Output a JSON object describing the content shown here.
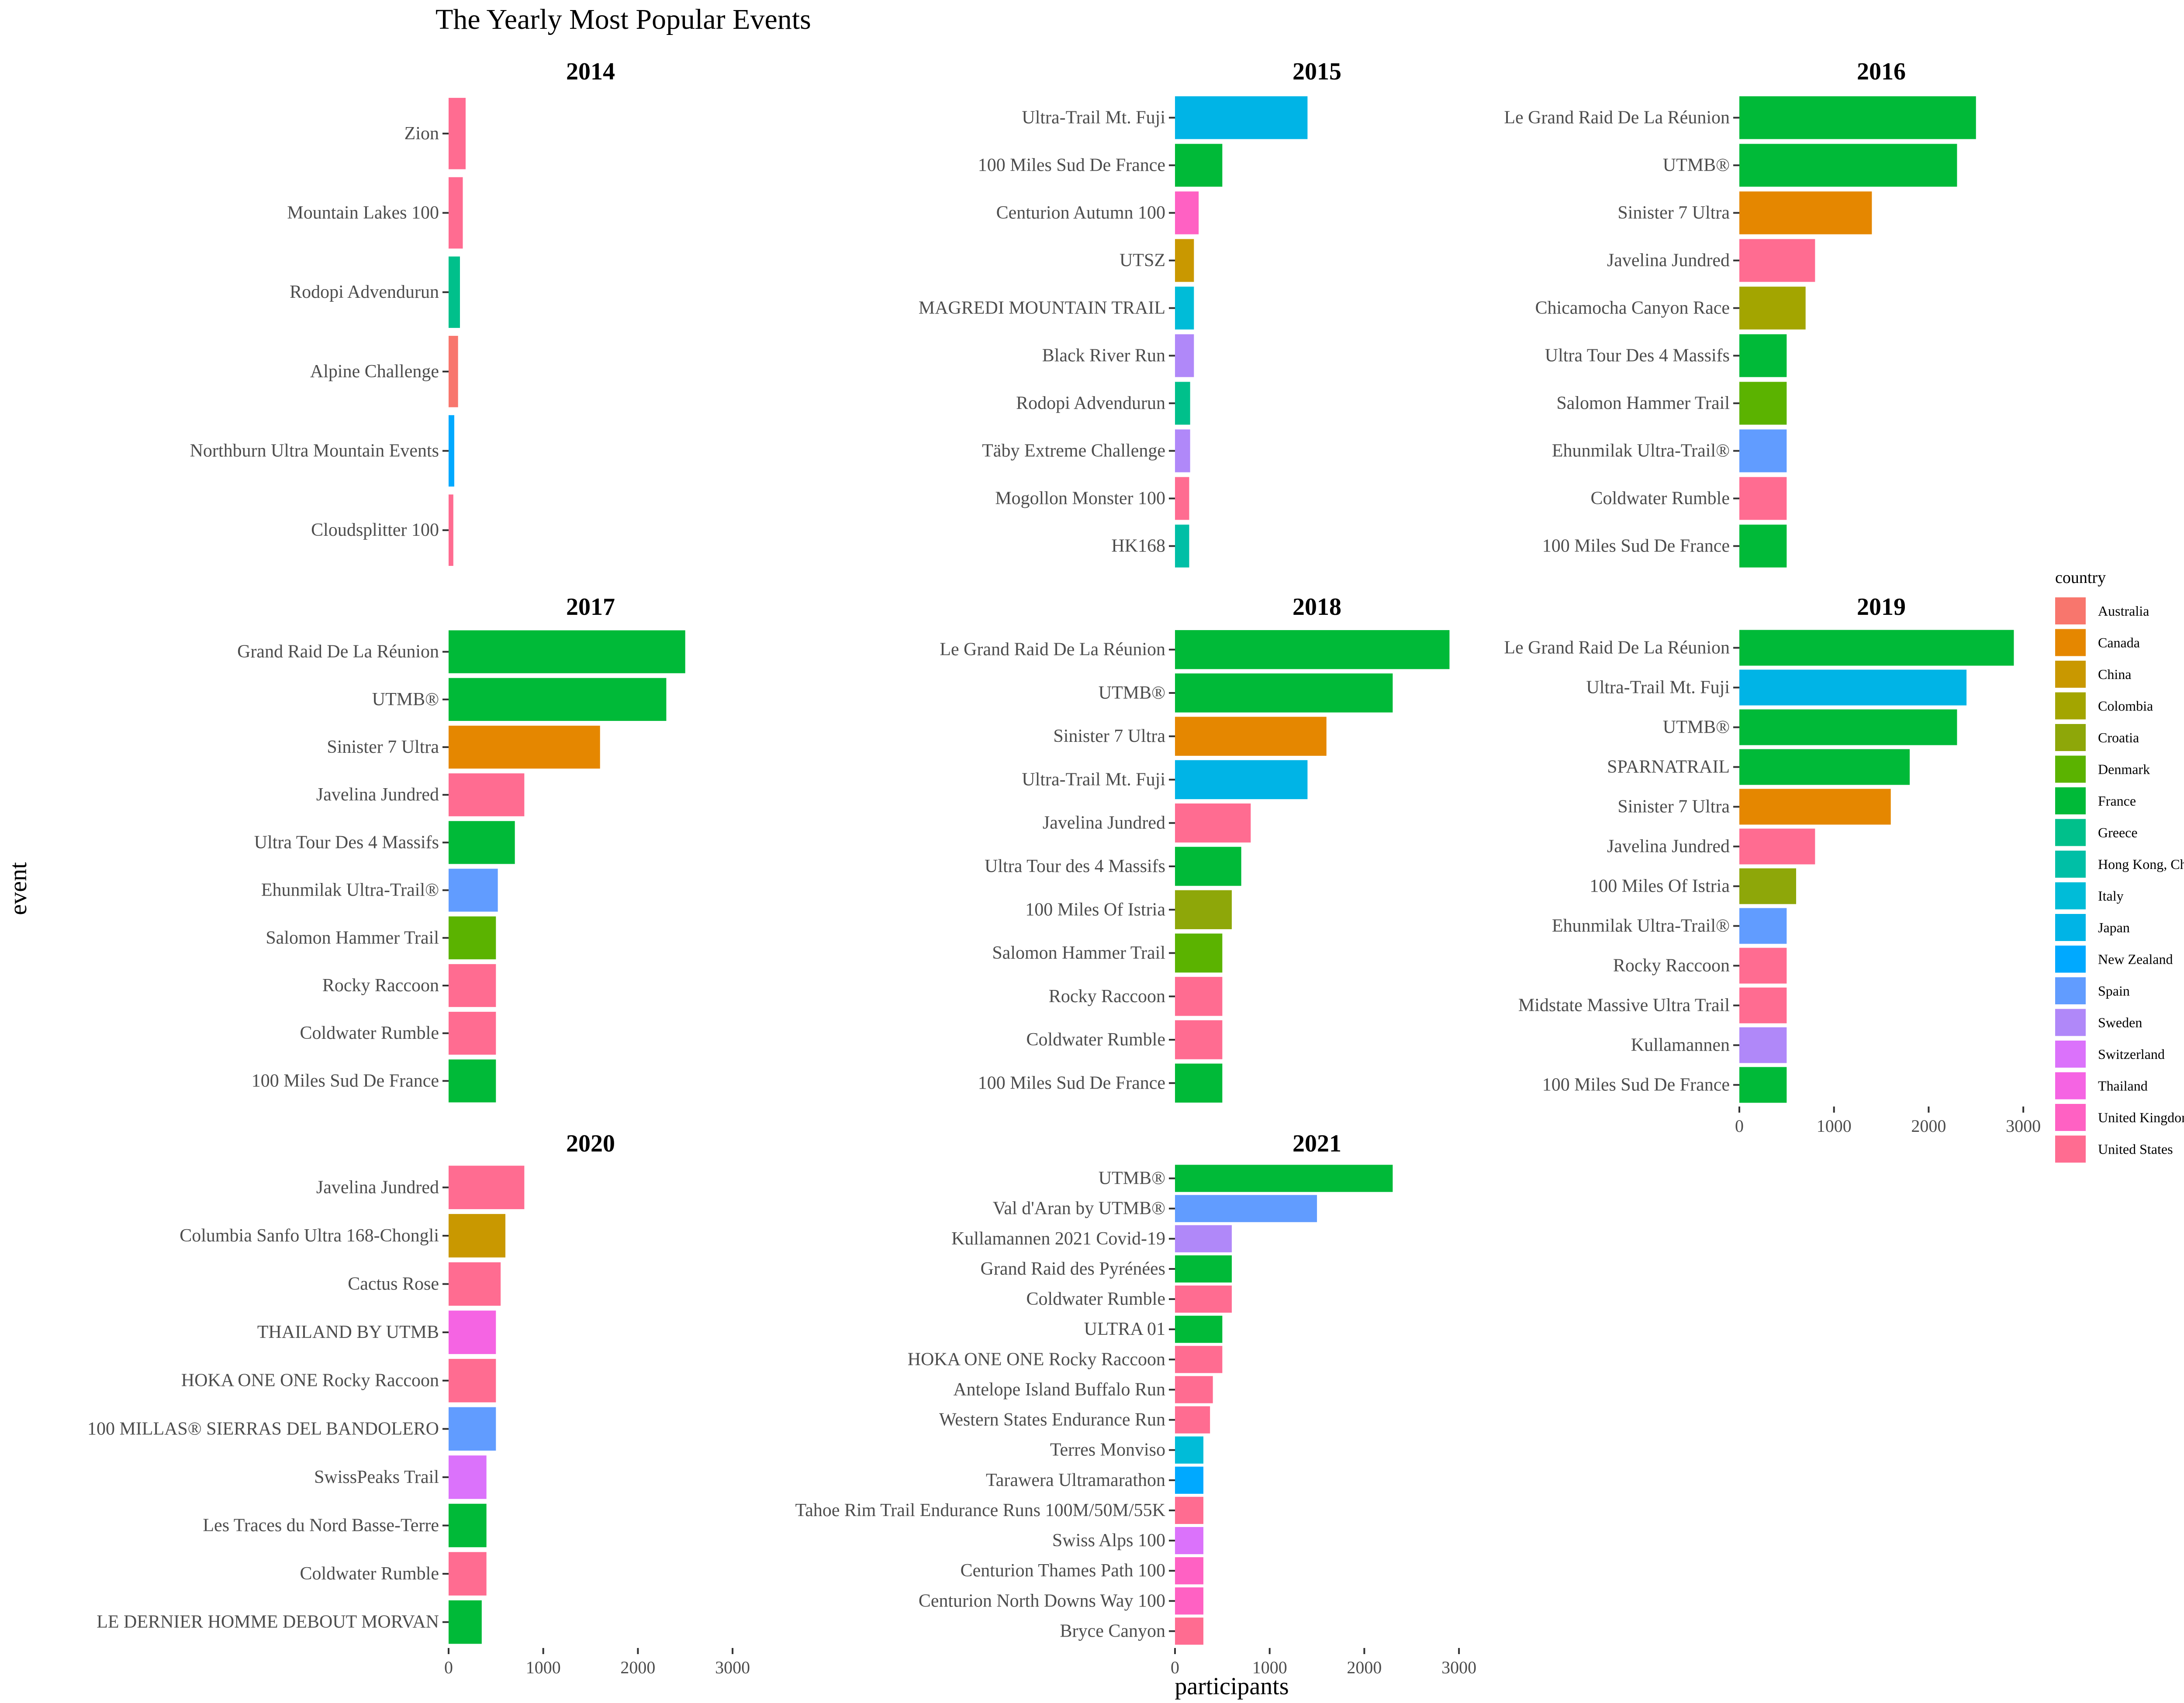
{
  "chart_data": {
    "type": "bar",
    "orientation": "horizontal",
    "title": "The Yearly Most Popular Events",
    "xlabel": "participants",
    "ylabel": "event",
    "xlim": [
      0,
      3000
    ],
    "x_ticks": [
      "0",
      "1000",
      "2000",
      "3000"
    ],
    "grid": false,
    "legend": {
      "title": "country",
      "placement": "right",
      "entries": [
        {
          "label": "Australia",
          "color": "#F8766D"
        },
        {
          "label": "Canada",
          "color": "#E58700"
        },
        {
          "label": "China",
          "color": "#C99800"
        },
        {
          "label": "Colombia",
          "color": "#A3A500"
        },
        {
          "label": "Croatia",
          "color": "#8EA709"
        },
        {
          "label": "Denmark",
          "color": "#5BB300"
        },
        {
          "label": "France",
          "color": "#00BA38"
        },
        {
          "label": "Greece",
          "color": "#00C08B"
        },
        {
          "label": "Hong Kong, China",
          "color": "#00BFA6"
        },
        {
          "label": "Italy",
          "color": "#00BCD8"
        },
        {
          "label": "Japan",
          "color": "#00B4E6"
        },
        {
          "label": "New Zealand",
          "color": "#00A9FF"
        },
        {
          "label": "Spain",
          "color": "#619CFF"
        },
        {
          "label": "Sweden",
          "color": "#B088F9"
        },
        {
          "label": "Switzerland",
          "color": "#DB72FB"
        },
        {
          "label": "Thailand",
          "color": "#F564E3"
        },
        {
          "label": "United Kingdom",
          "color": "#FF61C3"
        },
        {
          "label": "United States",
          "color": "#FF6C91"
        }
      ]
    },
    "panels": [
      {
        "year": "2014",
        "bars": [
          {
            "event": "Zion",
            "value": 180,
            "country": "United States"
          },
          {
            "event": "Mountain Lakes 100",
            "value": 150,
            "country": "United States"
          },
          {
            "event": "Rodopi Advendurun",
            "value": 120,
            "country": "Greece"
          },
          {
            "event": "Alpine Challenge",
            "value": 100,
            "country": "Australia"
          },
          {
            "event": "Northburn Ultra Mountain Events",
            "value": 60,
            "country": "New Zealand"
          },
          {
            "event": "Cloudsplitter 100",
            "value": 50,
            "country": "United States"
          }
        ]
      },
      {
        "year": "2015",
        "bars": [
          {
            "event": "Ultra-Trail Mt. Fuji",
            "value": 1400,
            "country": "Japan"
          },
          {
            "event": "100 Miles Sud De France",
            "value": 500,
            "country": "France"
          },
          {
            "event": "Centurion Autumn 100",
            "value": 250,
            "country": "United Kingdom"
          },
          {
            "event": "UTSZ",
            "value": 200,
            "country": "China"
          },
          {
            "event": "MAGREDI MOUNTAIN TRAIL",
            "value": 200,
            "country": "Italy"
          },
          {
            "event": "Black River Run",
            "value": 200,
            "country": "Sweden"
          },
          {
            "event": "Rodopi Advendurun",
            "value": 160,
            "country": "Greece"
          },
          {
            "event": "Täby Extreme Challenge",
            "value": 160,
            "country": "Sweden"
          },
          {
            "event": "Mogollon Monster 100",
            "value": 150,
            "country": "United States"
          },
          {
            "event": "HK168",
            "value": 150,
            "country": "Hong Kong, China"
          }
        ]
      },
      {
        "year": "2016",
        "bars": [
          {
            "event": "Le Grand Raid De La Réunion",
            "value": 2500,
            "country": "France"
          },
          {
            "event": "UTMB®",
            "value": 2300,
            "country": "France"
          },
          {
            "event": "Sinister 7 Ultra",
            "value": 1400,
            "country": "Canada"
          },
          {
            "event": "Javelina Jundred",
            "value": 800,
            "country": "United States"
          },
          {
            "event": "Chicamocha Canyon Race",
            "value": 700,
            "country": "Colombia"
          },
          {
            "event": "Ultra Tour Des 4 Massifs",
            "value": 500,
            "country": "France"
          },
          {
            "event": "Salomon Hammer Trail",
            "value": 500,
            "country": "Denmark"
          },
          {
            "event": "Ehunmilak Ultra-Trail®",
            "value": 500,
            "country": "Spain"
          },
          {
            "event": "Coldwater Rumble",
            "value": 500,
            "country": "United States"
          },
          {
            "event": "100 Miles Sud De France",
            "value": 500,
            "country": "France"
          }
        ]
      },
      {
        "year": "2017",
        "bars": [
          {
            "event": "Grand Raid De La Réunion",
            "value": 2500,
            "country": "France"
          },
          {
            "event": "UTMB®",
            "value": 2300,
            "country": "France"
          },
          {
            "event": "Sinister 7 Ultra",
            "value": 1600,
            "country": "Canada"
          },
          {
            "event": "Javelina Jundred",
            "value": 800,
            "country": "United States"
          },
          {
            "event": "Ultra Tour Des 4 Massifs",
            "value": 700,
            "country": "France"
          },
          {
            "event": "Ehunmilak Ultra-Trail®",
            "value": 520,
            "country": "Spain"
          },
          {
            "event": "Salomon Hammer Trail",
            "value": 500,
            "country": "Denmark"
          },
          {
            "event": "Rocky Raccoon",
            "value": 500,
            "country": "United States"
          },
          {
            "event": "Coldwater Rumble",
            "value": 500,
            "country": "United States"
          },
          {
            "event": "100 Miles Sud De France",
            "value": 500,
            "country": "France"
          }
        ]
      },
      {
        "year": "2018",
        "bars": [
          {
            "event": "Le Grand Raid De La Réunion",
            "value": 2900,
            "country": "France"
          },
          {
            "event": "UTMB®",
            "value": 2300,
            "country": "France"
          },
          {
            "event": "Sinister 7 Ultra",
            "value": 1600,
            "country": "Canada"
          },
          {
            "event": "Ultra-Trail Mt. Fuji",
            "value": 1400,
            "country": "Japan"
          },
          {
            "event": "Javelina Jundred",
            "value": 800,
            "country": "United States"
          },
          {
            "event": "Ultra Tour des 4 Massifs",
            "value": 700,
            "country": "France"
          },
          {
            "event": "100 Miles Of Istria",
            "value": 600,
            "country": "Croatia"
          },
          {
            "event": "Salomon Hammer Trail",
            "value": 500,
            "country": "Denmark"
          },
          {
            "event": "Rocky Raccoon",
            "value": 500,
            "country": "United States"
          },
          {
            "event": "Coldwater Rumble",
            "value": 500,
            "country": "United States"
          },
          {
            "event": "100 Miles Sud De France",
            "value": 500,
            "country": "France"
          }
        ]
      },
      {
        "year": "2019",
        "bars": [
          {
            "event": "Le Grand Raid De La Réunion",
            "value": 2900,
            "country": "France"
          },
          {
            "event": "Ultra-Trail Mt. Fuji",
            "value": 2400,
            "country": "Japan"
          },
          {
            "event": "UTMB®",
            "value": 2300,
            "country": "France"
          },
          {
            "event": "SPARNATRAIL",
            "value": 1800,
            "country": "France"
          },
          {
            "event": "Sinister 7 Ultra",
            "value": 1600,
            "country": "Canada"
          },
          {
            "event": "Javelina Jundred",
            "value": 800,
            "country": "United States"
          },
          {
            "event": "100 Miles Of Istria",
            "value": 600,
            "country": "Croatia"
          },
          {
            "event": "Ehunmilak Ultra-Trail®",
            "value": 500,
            "country": "Spain"
          },
          {
            "event": "Rocky Raccoon",
            "value": 500,
            "country": "United States"
          },
          {
            "event": "Midstate Massive Ultra Trail",
            "value": 500,
            "country": "United States"
          },
          {
            "event": "Kullamannen",
            "value": 500,
            "country": "Sweden"
          },
          {
            "event": "100 Miles Sud De France",
            "value": 500,
            "country": "France"
          }
        ]
      },
      {
        "year": "2020",
        "bars": [
          {
            "event": "Javelina Jundred",
            "value": 800,
            "country": "United States"
          },
          {
            "event": "Columbia Sanfo Ultra 168-Chongli",
            "value": 600,
            "country": "China"
          },
          {
            "event": "Cactus Rose",
            "value": 550,
            "country": "United States"
          },
          {
            "event": "THAILAND BY UTMB",
            "value": 500,
            "country": "Thailand"
          },
          {
            "event": "HOKA ONE ONE Rocky Raccoon",
            "value": 500,
            "country": "United States"
          },
          {
            "event": "100 MILLAS® SIERRAS DEL BANDOLERO",
            "value": 500,
            "country": "Spain"
          },
          {
            "event": "SwissPeaks Trail",
            "value": 400,
            "country": "Switzerland"
          },
          {
            "event": "Les Traces du Nord Basse-Terre",
            "value": 400,
            "country": "France"
          },
          {
            "event": "Coldwater Rumble",
            "value": 400,
            "country": "United States"
          },
          {
            "event": "LE DERNIER HOMME DEBOUT MORVAN",
            "value": 350,
            "country": "France"
          }
        ]
      },
      {
        "year": "2021",
        "bars": [
          {
            "event": "UTMB®",
            "value": 2300,
            "country": "France"
          },
          {
            "event": "Val d'Aran by UTMB®",
            "value": 1500,
            "country": "Spain"
          },
          {
            "event": "Kullamannen 2021 Covid-19",
            "value": 600,
            "country": "Sweden"
          },
          {
            "event": "Grand Raid des Pyrénées",
            "value": 600,
            "country": "France"
          },
          {
            "event": "Coldwater Rumble",
            "value": 600,
            "country": "United States"
          },
          {
            "event": "ULTRA 01",
            "value": 500,
            "country": "France"
          },
          {
            "event": "HOKA ONE ONE Rocky Raccoon",
            "value": 500,
            "country": "United States"
          },
          {
            "event": "Antelope Island Buffalo Run",
            "value": 400,
            "country": "United States"
          },
          {
            "event": "Western States Endurance Run",
            "value": 370,
            "country": "United States"
          },
          {
            "event": "Terres Monviso",
            "value": 300,
            "country": "Italy"
          },
          {
            "event": "Tarawera Ultramarathon",
            "value": 300,
            "country": "New Zealand"
          },
          {
            "event": "Tahoe Rim Trail Endurance Runs 100M/50M/55K",
            "value": 300,
            "country": "United States"
          },
          {
            "event": "Swiss Alps 100",
            "value": 300,
            "country": "Switzerland"
          },
          {
            "event": "Centurion Thames Path 100",
            "value": 300,
            "country": "United Kingdom"
          },
          {
            "event": "Centurion North Downs Way 100",
            "value": 300,
            "country": "United Kingdom"
          },
          {
            "event": "Bryce Canyon",
            "value": 300,
            "country": "United States"
          }
        ]
      }
    ]
  }
}
